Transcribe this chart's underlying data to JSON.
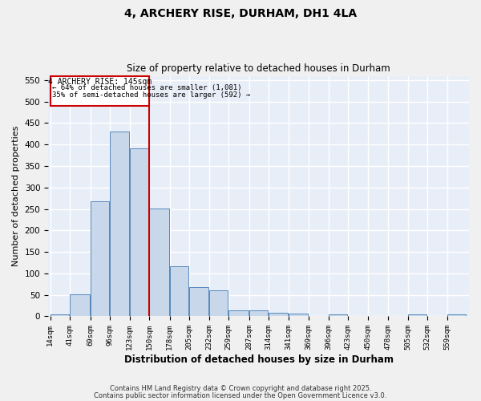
{
  "title_line1": "4, ARCHERY RISE, DURHAM, DH1 4LA",
  "title_line2": "Size of property relative to detached houses in Durham",
  "xlabel": "Distribution of detached houses by size in Durham",
  "ylabel": "Number of detached properties",
  "bar_color": "#c8d8ea",
  "bar_edge_color": "#5588bb",
  "background_color": "#e8eef8",
  "grid_color": "#ffffff",
  "bins": [
    14,
    41,
    69,
    96,
    123,
    150,
    178,
    205,
    232,
    259,
    287,
    314,
    341,
    369,
    396,
    423,
    450,
    478,
    505,
    532,
    559
  ],
  "counts": [
    4,
    51,
    267,
    430,
    392,
    251,
    117,
    69,
    60,
    14,
    14,
    8,
    6,
    0,
    4,
    0,
    0,
    0,
    4,
    0,
    4
  ],
  "bin_labels": [
    "14sqm",
    "41sqm",
    "69sqm",
    "96sqm",
    "123sqm",
    "150sqm",
    "178sqm",
    "205sqm",
    "232sqm",
    "259sqm",
    "287sqm",
    "314sqm",
    "341sqm",
    "369sqm",
    "396sqm",
    "423sqm",
    "450sqm",
    "478sqm",
    "505sqm",
    "532sqm",
    "559sqm"
  ],
  "vline_color": "#cc0000",
  "vline_x": 150,
  "annotation_title": "4 ARCHERY RISE: 145sqm",
  "annotation_line1": "← 64% of detached houses are smaller (1,081)",
  "annotation_line2": "35% of semi-detached houses are larger (592) →",
  "annotation_box_color": "#cc0000",
  "annotation_bg_color": "#ffffff",
  "ylim_max": 560,
  "yticks": [
    0,
    50,
    100,
    150,
    200,
    250,
    300,
    350,
    400,
    450,
    500,
    550
  ],
  "footer_line1": "Contains HM Land Registry data © Crown copyright and database right 2025.",
  "footer_line2": "Contains public sector information licensed under the Open Government Licence v3.0.",
  "fig_bg": "#f0f0f0"
}
